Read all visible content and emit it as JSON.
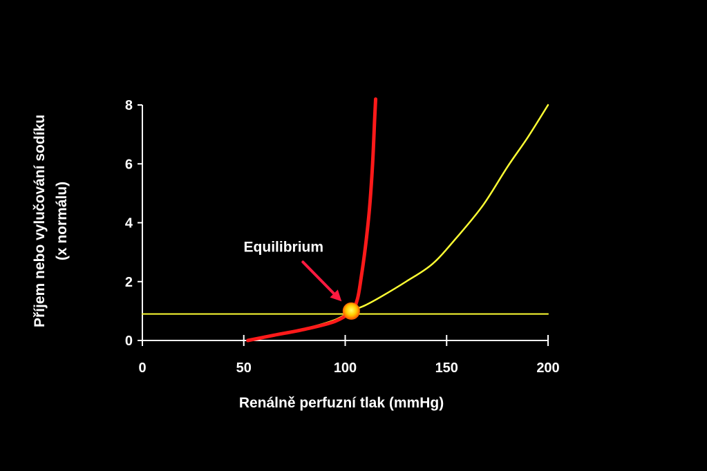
{
  "chart_data": {
    "type": "line",
    "title": "",
    "xlabel": "Renálně perfuzní tlak (mmHg)",
    "ylabel_lines": [
      "Příjem nebo vylučování sodíku",
      "(x normálu)"
    ],
    "xlim": [
      0,
      200
    ],
    "ylim": [
      0,
      8
    ],
    "x_ticks": [
      0,
      50,
      100,
      150,
      200
    ],
    "y_ticks": [
      0,
      2,
      4,
      6,
      8
    ],
    "x_tick_labels": [
      "0",
      "50",
      "100",
      "150",
      "200"
    ],
    "y_tick_labels": [
      "0",
      "2",
      "4",
      "6",
      "8"
    ],
    "grid": false,
    "series": [
      {
        "color": "#ffff33",
        "x": [
          52,
          65,
          80,
          95,
          103,
          110,
          118,
          130,
          143,
          155,
          168,
          180,
          190,
          200
        ],
        "y": [
          0.0,
          0.2,
          0.4,
          0.7,
          1.0,
          1.2,
          1.5,
          2.0,
          2.6,
          3.5,
          4.6,
          5.9,
          6.9,
          8.0
        ]
      },
      {
        "color": "#ff1a1a",
        "x": [
          52,
          65,
          80,
          95,
          103,
          106,
          108,
          110,
          112,
          113.5,
          114.5,
          115
        ],
        "y": [
          0.0,
          0.18,
          0.38,
          0.65,
          1.0,
          1.4,
          2.2,
          3.2,
          4.5,
          6.0,
          7.5,
          8.2
        ]
      },
      {
        "color": "#ffff33",
        "x": [
          0,
          200
        ],
        "y": [
          0.9,
          0.9
        ]
      }
    ],
    "annotations": [
      {
        "text": "Equilibrium",
        "point": [
          103,
          1.0
        ]
      }
    ]
  },
  "colors": {
    "background": "#000000",
    "axis": "#ffffff",
    "arrow": "#ff1a40",
    "marker_center": "#ffee44",
    "marker_edge": "#ff6600"
  }
}
